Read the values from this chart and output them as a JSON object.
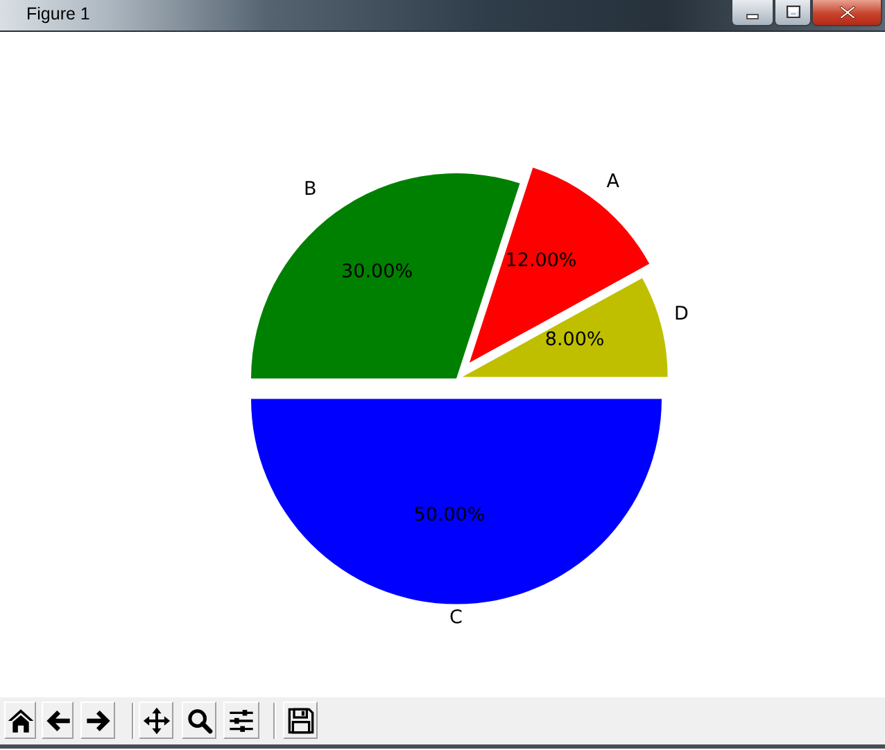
{
  "chart_data": {
    "type": "pie",
    "categories": [
      "D",
      "A",
      "B",
      "C"
    ],
    "values": [
      8,
      12,
      30,
      50
    ],
    "colors": [
      "#bfbf00",
      "#ff0000",
      "#008000",
      "#0000ff"
    ],
    "value_labels": [
      "8.00%",
      "12.00%",
      "30.00%",
      "50.00%"
    ],
    "annotations": [
      "Figure 1"
    ]
  }
}
